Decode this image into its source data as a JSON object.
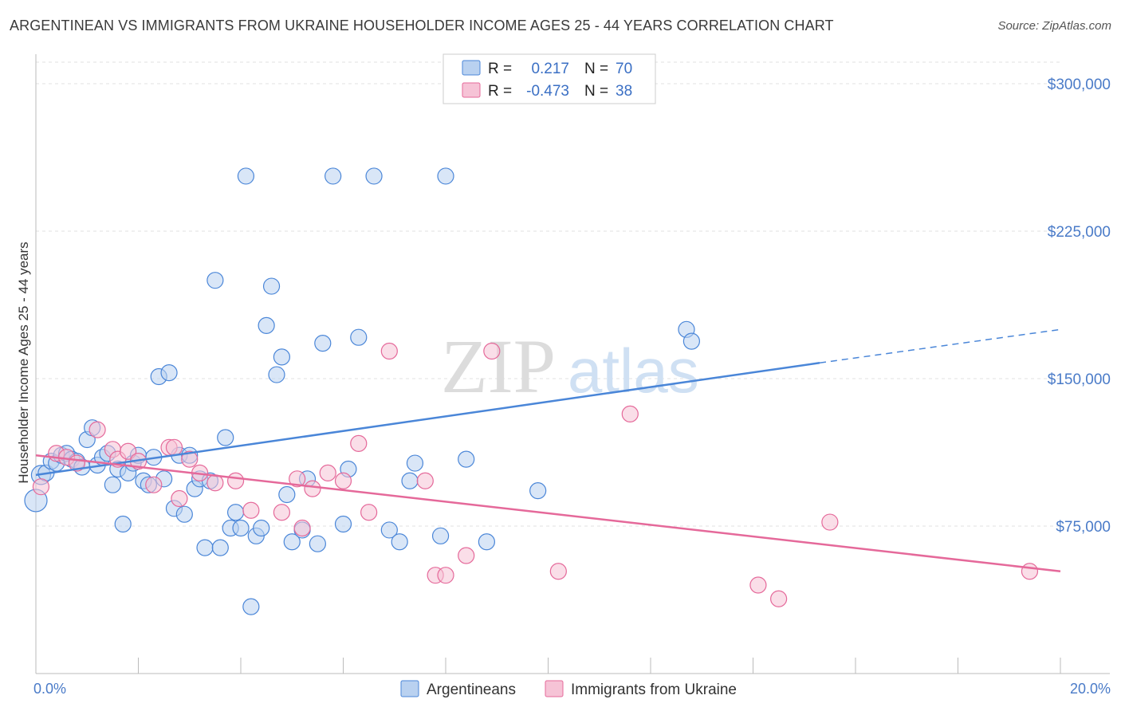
{
  "title": "ARGENTINEAN VS IMMIGRANTS FROM UKRAINE HOUSEHOLDER INCOME AGES 25 - 44 YEARS CORRELATION CHART",
  "source": "Source: ZipAtlas.com",
  "watermark": {
    "zip": "ZIP",
    "atlas": "atlas"
  },
  "colors": {
    "blue": "#4a86d8",
    "blue_fill": "#b9d1f0",
    "pink": "#e5699a",
    "pink_fill": "#f6c3d6",
    "axis_text": "#4a7bc8"
  },
  "chart_data": {
    "type": "scatter",
    "xlabel": "",
    "ylabel": "Householder Income Ages 25 - 44 years",
    "xlim": [
      0,
      20
    ],
    "ylim": [
      0,
      315000
    ],
    "x_tick_labels": [
      "0.0%",
      "20.0%"
    ],
    "y_ticks": [
      75000,
      150000,
      225000,
      300000
    ],
    "y_tick_labels": [
      "$75,000",
      "$150,000",
      "$225,000",
      "$300,000"
    ],
    "grid": true,
    "legend": {
      "position": "top-center",
      "rows": [
        {
          "r_label": "R =",
          "r_value": "0.217",
          "n_label": "N =",
          "n_value": "70"
        },
        {
          "r_label": "R =",
          "r_value": "-0.473",
          "n_label": "N =",
          "n_value": "38"
        }
      ]
    },
    "series": [
      {
        "name": "Argentineans",
        "color": "#4a86d8",
        "trend": {
          "x0": 0,
          "y0": 101000,
          "x1": 15.3,
          "y1": 158000,
          "dash_x1": 20,
          "dash_y1": 175000
        },
        "points": [
          [
            0.1,
            101000
          ],
          [
            0.2,
            102000
          ],
          [
            0.3,
            108000
          ],
          [
            0.4,
            107000
          ],
          [
            0.5,
            111000
          ],
          [
            0.6,
            112000
          ],
          [
            0.7,
            109000
          ],
          [
            0.8,
            108000
          ],
          [
            0.9,
            105000
          ],
          [
            1.0,
            119000
          ],
          [
            1.1,
            125000
          ],
          [
            1.2,
            106000
          ],
          [
            1.3,
            110000
          ],
          [
            1.4,
            112000
          ],
          [
            1.5,
            96000
          ],
          [
            1.6,
            104000
          ],
          [
            1.7,
            76000
          ],
          [
            1.8,
            102000
          ],
          [
            1.9,
            107000
          ],
          [
            2.0,
            111000
          ],
          [
            2.1,
            98000
          ],
          [
            2.2,
            96000
          ],
          [
            2.3,
            110000
          ],
          [
            2.4,
            151000
          ],
          [
            2.5,
            99000
          ],
          [
            2.6,
            153000
          ],
          [
            2.7,
            84000
          ],
          [
            2.8,
            111000
          ],
          [
            2.9,
            81000
          ],
          [
            3.0,
            111000
          ],
          [
            3.1,
            94000
          ],
          [
            3.2,
            99000
          ],
          [
            3.3,
            64000
          ],
          [
            3.4,
            98000
          ],
          [
            3.5,
            200000
          ],
          [
            3.6,
            64000
          ],
          [
            3.7,
            120000
          ],
          [
            3.8,
            74000
          ],
          [
            3.9,
            82000
          ],
          [
            4.0,
            74000
          ],
          [
            4.1,
            253000
          ],
          [
            4.2,
            34000
          ],
          [
            4.3,
            70000
          ],
          [
            4.4,
            74000
          ],
          [
            4.5,
            177000
          ],
          [
            4.6,
            197000
          ],
          [
            4.7,
            152000
          ],
          [
            4.8,
            161000
          ],
          [
            4.9,
            91000
          ],
          [
            5.0,
            67000
          ],
          [
            5.2,
            73000
          ],
          [
            5.3,
            99000
          ],
          [
            5.5,
            66000
          ],
          [
            5.6,
            168000
          ],
          [
            5.8,
            253000
          ],
          [
            6.0,
            76000
          ],
          [
            6.1,
            104000
          ],
          [
            6.3,
            171000
          ],
          [
            6.6,
            253000
          ],
          [
            6.9,
            73000
          ],
          [
            7.1,
            67000
          ],
          [
            7.3,
            98000
          ],
          [
            7.4,
            107000
          ],
          [
            7.9,
            70000
          ],
          [
            8.0,
            253000
          ],
          [
            8.4,
            109000
          ],
          [
            8.8,
            67000
          ],
          [
            9.8,
            93000
          ],
          [
            12.7,
            175000
          ],
          [
            12.8,
            169000
          ]
        ]
      },
      {
        "name": "Immigrants from Ukraine",
        "color": "#e5699a",
        "trend": {
          "x0": 0,
          "y0": 111000,
          "x1": 20,
          "y1": 52000
        },
        "points": [
          [
            0.1,
            95000
          ],
          [
            0.4,
            112000
          ],
          [
            0.6,
            110000
          ],
          [
            0.8,
            107000
          ],
          [
            1.2,
            124000
          ],
          [
            1.5,
            114000
          ],
          [
            1.6,
            109000
          ],
          [
            1.8,
            113000
          ],
          [
            2.0,
            108000
          ],
          [
            2.3,
            96000
          ],
          [
            2.6,
            115000
          ],
          [
            2.7,
            115000
          ],
          [
            2.8,
            89000
          ],
          [
            3.0,
            109000
          ],
          [
            3.2,
            102000
          ],
          [
            3.5,
            97000
          ],
          [
            3.9,
            98000
          ],
          [
            4.2,
            83000
          ],
          [
            4.8,
            82000
          ],
          [
            5.1,
            99000
          ],
          [
            5.2,
            74000
          ],
          [
            5.4,
            94000
          ],
          [
            5.7,
            102000
          ],
          [
            6.0,
            98000
          ],
          [
            6.3,
            117000
          ],
          [
            6.5,
            82000
          ],
          [
            6.9,
            164000
          ],
          [
            7.8,
            50000
          ],
          [
            8.0,
            50000
          ],
          [
            8.4,
            60000
          ],
          [
            8.9,
            164000
          ],
          [
            10.2,
            52000
          ],
          [
            11.6,
            132000
          ],
          [
            14.1,
            45000
          ],
          [
            14.5,
            38000
          ],
          [
            15.5,
            77000
          ],
          [
            19.4,
            52000
          ],
          [
            7.6,
            98000
          ]
        ]
      }
    ]
  }
}
